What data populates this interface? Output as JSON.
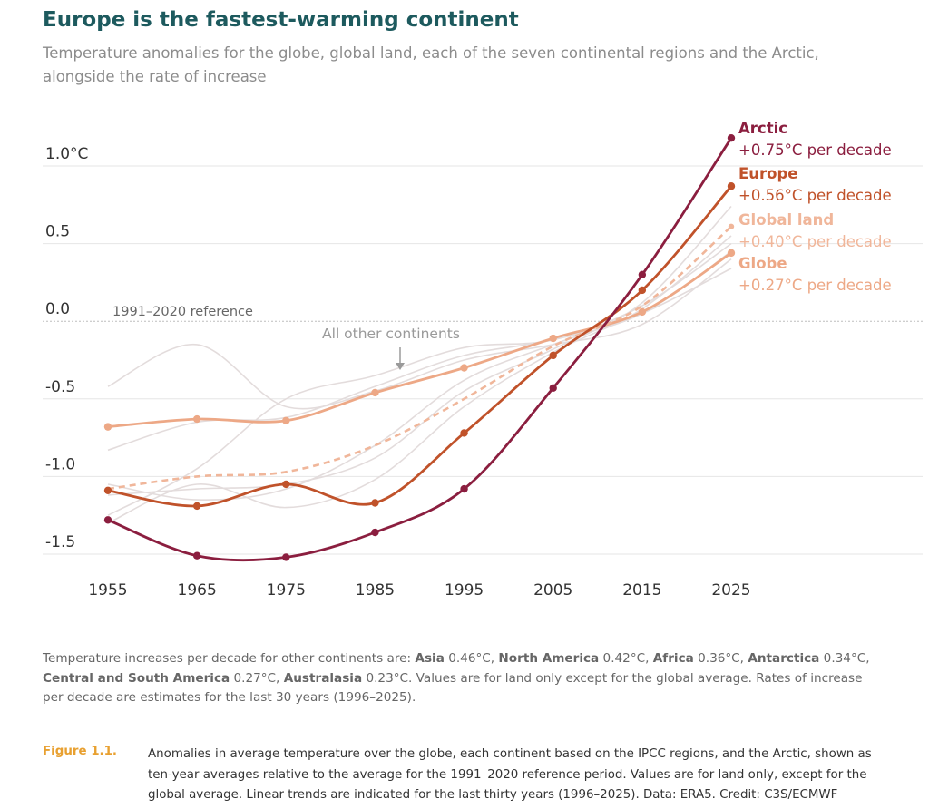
{
  "header": {
    "title": "Europe is the fastest-warming continent",
    "subtitle": "Temperature anomalies for the globe, global land, each of the seven continental regions and the Arctic, alongside the rate of increase"
  },
  "chart_data": {
    "type": "line",
    "x": [
      1955,
      1965,
      1975,
      1985,
      1995,
      2005,
      2015,
      2025
    ],
    "xlim": [
      1955,
      2025
    ],
    "ylim": [
      -1.5,
      1.0
    ],
    "y_ticks": [
      {
        "value": 1.0,
        "label": "1.0°C"
      },
      {
        "value": 0.5,
        "label": "0.5"
      },
      {
        "value": 0.0,
        "label": "0.0"
      },
      {
        "value": -0.5,
        "label": "-0.5"
      },
      {
        "value": -1.0,
        "label": "-1.0"
      },
      {
        "value": -1.5,
        "label": "-1.5"
      }
    ],
    "x_tick_labels": [
      "1955",
      "1965",
      "1975",
      "1985",
      "1995",
      "2005",
      "2015",
      "2025"
    ],
    "reference_label": "1991–2020 reference",
    "other_continents_label": "All other continents",
    "grid": true,
    "series": [
      {
        "name": "Arctic",
        "rate": "+0.75°C per decade",
        "color": "#8b1e3f",
        "values": [
          -1.28,
          -1.51,
          -1.52,
          -1.36,
          -1.08,
          -0.43,
          0.3,
          1.18
        ]
      },
      {
        "name": "Europe",
        "rate": "+0.56°C per decade",
        "color": "#c0522a",
        "values": [
          -1.09,
          -1.19,
          -1.05,
          -1.17,
          -0.72,
          -0.22,
          0.2,
          0.87
        ]
      },
      {
        "name": "Global land",
        "rate": "+0.40°C per decade",
        "color": "#f0b69a",
        "dashed": true,
        "values": [
          -1.08,
          -1.0,
          -0.97,
          -0.8,
          -0.5,
          -0.16,
          0.1,
          0.61
        ]
      },
      {
        "name": "Globe",
        "rate": "+0.27°C per decade",
        "color": "#eda886",
        "values": [
          -0.68,
          -0.63,
          -0.64,
          -0.46,
          -0.3,
          -0.11,
          0.06,
          0.44
        ]
      }
    ],
    "other_continents": [
      {
        "values": [
          -0.42,
          -0.15,
          -0.55,
          -0.45,
          -0.25,
          -0.15,
          -0.02,
          0.4
        ]
      },
      {
        "values": [
          -1.25,
          -0.95,
          -0.5,
          -0.35,
          -0.17,
          -0.12,
          0.1,
          0.5
        ]
      },
      {
        "values": [
          -0.83,
          -0.65,
          -0.62,
          -0.42,
          -0.22,
          -0.12,
          0.05,
          0.45
        ]
      },
      {
        "values": [
          -1.12,
          -1.08,
          -1.05,
          -0.88,
          -0.45,
          -0.18,
          0.12,
          0.74
        ]
      },
      {
        "values": [
          -1.3,
          -1.05,
          -1.2,
          -1.02,
          -0.55,
          -0.2,
          0.08,
          0.55
        ]
      },
      {
        "values": [
          -1.05,
          -1.15,
          -1.08,
          -0.8,
          -0.38,
          -0.15,
          0.05,
          0.34
        ]
      }
    ]
  },
  "note": {
    "intro": "Temperature increases per decade for other continents are: ",
    "items": [
      {
        "name": "Asia",
        "value": " 0.46°C, "
      },
      {
        "name": "North America",
        "value": " 0.42°C, "
      },
      {
        "name": "Africa",
        "value": " 0.36°C, "
      },
      {
        "name": "Antarctica",
        "value": " 0.34°C, "
      },
      {
        "name": "Central and South America",
        "value": " 0.27°C, "
      },
      {
        "name": "Australasia",
        "value": " 0.23°C. "
      }
    ],
    "outro": "Values are for land only except for the global average. Rates of increase per decade are estimates for the last 30 years (1996–2025)."
  },
  "figure": {
    "label": "Figure 1.1.",
    "caption": "Anomalies in average temperature over the globe, each continent based on the IPCC regions, and the Arctic, shown as ten-year averages relative to the average for the 1991–2020 reference period. Values are for land only, except for the global average. Linear trends are indicated for the last thirty years (1996–2025). Data: ERA5. Credit: C3S/ECMWF"
  }
}
